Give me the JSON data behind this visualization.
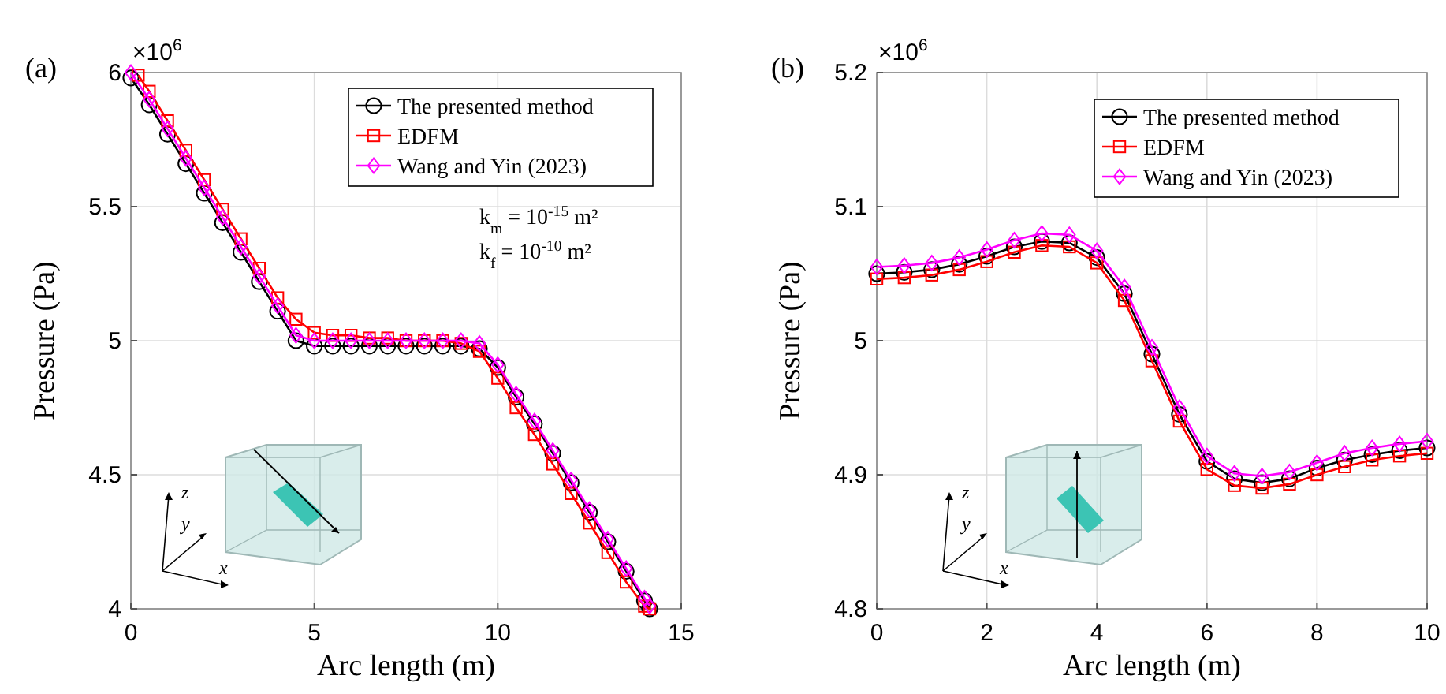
{
  "chart_data": [
    {
      "type": "line",
      "xlabel": "Arc length (m)",
      "ylabel": "Pressure (Pa)",
      "xlim": [
        0,
        15
      ],
      "xticks": [
        0,
        5,
        10,
        15
      ],
      "ylim": [
        4,
        6
      ],
      "yticks": [
        4,
        4.5,
        5,
        5.5,
        6
      ],
      "grid": true,
      "legend": "top right",
      "annotations": [
        "(a)",
        "×10$^{6}$",
        "k$_{m}$ = 10$^{-15}$ m²",
        "k$_{f}$ = 10$^{-10}$ m²",
        "x",
        "y",
        "z"
      ],
      "series": [
        {
          "name": "The presented method",
          "color": "#000000",
          "marker": "circle",
          "x": [
            0,
            0.5,
            1,
            1.5,
            2,
            2.5,
            3,
            3.5,
            4,
            4.5,
            5,
            5.5,
            6,
            6.5,
            7,
            7.5,
            8,
            8.5,
            9,
            9.5,
            10,
            10.5,
            11,
            11.5,
            12,
            12.5,
            13,
            13.5,
            14,
            14.14
          ],
          "values": [
            5.98,
            5.88,
            5.77,
            5.66,
            5.55,
            5.44,
            5.33,
            5.22,
            5.11,
            5.0,
            4.98,
            4.98,
            4.98,
            4.98,
            4.98,
            4.98,
            4.98,
            4.98,
            4.98,
            4.97,
            4.9,
            4.79,
            4.69,
            4.58,
            4.47,
            4.36,
            4.25,
            4.14,
            4.03,
            4.0
          ]
        },
        {
          "name": "EDFM",
          "color": "#ff0000",
          "marker": "square",
          "x": [
            0.2,
            0.5,
            1,
            1.5,
            2,
            2.5,
            3,
            3.5,
            4,
            4.5,
            5,
            5.5,
            6,
            6.5,
            7,
            7.5,
            8,
            8.5,
            9,
            9.5,
            10,
            10.5,
            11,
            11.5,
            12,
            12.5,
            13,
            13.5,
            14,
            14.14
          ],
          "values": [
            5.99,
            5.93,
            5.82,
            5.71,
            5.6,
            5.49,
            5.38,
            5.27,
            5.16,
            5.08,
            5.03,
            5.02,
            5.02,
            5.01,
            5.01,
            5.0,
            5.0,
            5.0,
            4.99,
            4.96,
            4.86,
            4.75,
            4.65,
            4.54,
            4.43,
            4.32,
            4.21,
            4.1,
            4.01,
            4.0
          ]
        },
        {
          "name": "Wang and Yin (2023)",
          "color": "#ff00ff",
          "marker": "diamond",
          "x": [
            0,
            0.5,
            1,
            1.5,
            2,
            2.5,
            3,
            3.5,
            4,
            4.5,
            5,
            5.5,
            6,
            6.5,
            7,
            7.5,
            8,
            8.5,
            9,
            9.5,
            10,
            10.5,
            11,
            11.5,
            12,
            12.5,
            13,
            13.5,
            14,
            14.14
          ],
          "values": [
            6.0,
            5.9,
            5.79,
            5.68,
            5.57,
            5.46,
            5.35,
            5.24,
            5.13,
            5.02,
            5.0,
            5.0,
            5.0,
            5.0,
            5.0,
            5.0,
            5.0,
            5.0,
            5.0,
            4.99,
            4.91,
            4.8,
            4.7,
            4.59,
            4.48,
            4.37,
            4.26,
            4.15,
            4.04,
            4.01
          ]
        }
      ]
    },
    {
      "type": "line",
      "xlabel": "Arc length (m)",
      "ylabel": "Pressure (Pa)",
      "xlim": [
        0,
        10
      ],
      "xticks": [
        0,
        2,
        4,
        6,
        8,
        10
      ],
      "ylim": [
        4.8,
        5.2
      ],
      "yticks": [
        4.8,
        4.9,
        5,
        5.1,
        5.2
      ],
      "grid": true,
      "legend": "top right",
      "annotations": [
        "(b)",
        "×10$^{6}$",
        "x",
        "y",
        "z"
      ],
      "series": [
        {
          "name": "The presented method",
          "color": "#000000",
          "marker": "circle",
          "x": [
            0,
            0.5,
            1,
            1.5,
            2,
            2.5,
            3,
            3.5,
            4,
            4.5,
            5,
            5.5,
            6,
            6.5,
            7,
            7.5,
            8,
            8.5,
            9,
            9.5,
            10
          ],
          "values": [
            5.05,
            5.051,
            5.053,
            5.057,
            5.063,
            5.07,
            5.074,
            5.073,
            5.062,
            5.035,
            4.99,
            4.945,
            4.91,
            4.897,
            4.894,
            4.897,
            4.905,
            4.911,
            4.915,
            4.918,
            4.92
          ]
        },
        {
          "name": "EDFM",
          "color": "#ff0000",
          "marker": "square",
          "x": [
            0,
            0.5,
            1,
            1.5,
            2,
            2.5,
            3,
            3.5,
            4,
            4.5,
            5,
            5.5,
            6,
            6.5,
            7,
            7.5,
            8,
            8.5,
            9,
            9.5,
            10
          ],
          "values": [
            5.046,
            5.047,
            5.049,
            5.053,
            5.059,
            5.066,
            5.071,
            5.07,
            5.058,
            5.03,
            4.985,
            4.94,
            4.904,
            4.892,
            4.89,
            4.893,
            4.9,
            4.906,
            4.911,
            4.914,
            4.916
          ]
        },
        {
          "name": "Wang and Yin (2023)",
          "color": "#ff00ff",
          "marker": "diamond",
          "x": [
            0,
            0.5,
            1,
            1.5,
            2,
            2.5,
            3,
            3.5,
            4,
            4.5,
            5,
            5.5,
            6,
            6.5,
            7,
            7.5,
            8,
            8.5,
            9,
            9.5,
            10
          ],
          "values": [
            5.055,
            5.056,
            5.058,
            5.062,
            5.068,
            5.075,
            5.08,
            5.079,
            5.067,
            5.04,
            4.995,
            4.95,
            4.914,
            4.901,
            4.899,
            4.902,
            4.909,
            4.916,
            4.92,
            4.923,
            4.925
          ]
        }
      ]
    }
  ]
}
